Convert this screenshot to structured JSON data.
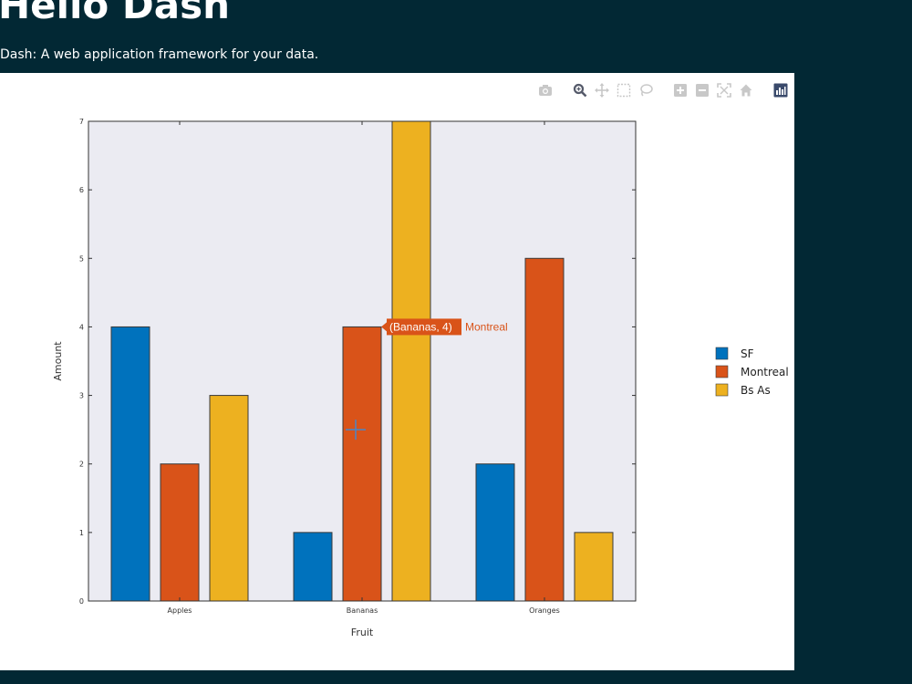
{
  "header": {
    "title": "Hello Dash",
    "subtitle": "Dash: A web application framework for your data."
  },
  "modebar": {
    "icons": [
      "camera-icon",
      "zoom-icon",
      "pan-icon",
      "box-select-icon",
      "lasso-icon",
      "zoom-in-icon",
      "zoom-out-icon",
      "autoscale-icon",
      "reset-axes-icon",
      "plotly-logo-icon"
    ]
  },
  "colors": {
    "page_background": "#022834",
    "plot_background": "#ebebf2",
    "sf": "#0072bd",
    "montreal": "#d95319",
    "bs_as": "#edb120"
  },
  "chart_data": {
    "type": "bar",
    "categories": [
      "Apples",
      "Bananas",
      "Oranges"
    ],
    "series": [
      {
        "name": "SF",
        "values": [
          4,
          1,
          2
        ],
        "color": "#0072bd"
      },
      {
        "name": "Montreal",
        "values": [
          2,
          4,
          5
        ],
        "color": "#d95319"
      },
      {
        "name": "Bs As",
        "values": [
          3,
          7,
          1
        ],
        "color": "#edb120"
      }
    ],
    "title": "",
    "xlabel": "Fruit",
    "ylabel": "Amount",
    "ylim": [
      0,
      7
    ],
    "yticks": [
      0,
      1,
      2,
      3,
      4,
      5,
      6,
      7
    ],
    "grid": false,
    "legend_position": "right",
    "hover": {
      "label": "(Bananas, 4)",
      "series": "Montreal"
    }
  }
}
